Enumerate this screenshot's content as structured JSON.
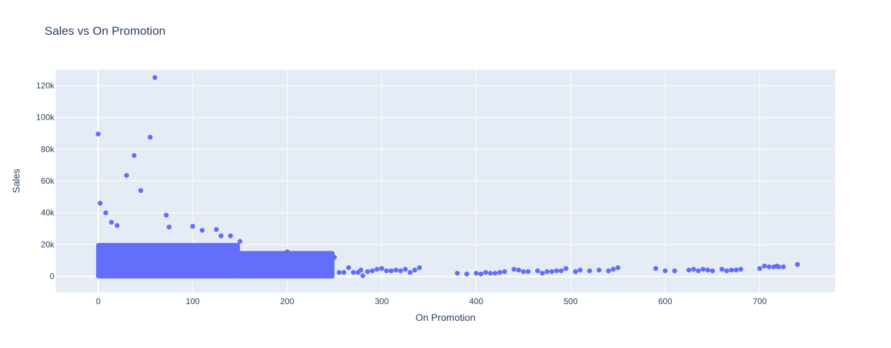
{
  "chart_data": {
    "type": "scatter",
    "title": "Sales vs On Promotion",
    "xlabel": "On Promotion",
    "ylabel": "Sales",
    "xlim": [
      -45,
      780
    ],
    "ylim": [
      -10000,
      130000
    ],
    "x_ticks": [
      0,
      100,
      200,
      300,
      400,
      500,
      600,
      700
    ],
    "x_tick_labels": [
      "0",
      "100",
      "200",
      "300",
      "400",
      "500",
      "600",
      "700"
    ],
    "y_ticks": [
      0,
      20000,
      40000,
      60000,
      80000,
      100000,
      120000
    ],
    "y_tick_labels": [
      "0",
      "20k",
      "40k",
      "60k",
      "80k",
      "100k",
      "120k"
    ],
    "grid": true,
    "legend": "none",
    "colors": {
      "marker": "#636efa",
      "plot_bg": "#e5ecf6",
      "grid": "#ffffff",
      "text": "#2a3f5f"
    },
    "dense_regions": [
      {
        "x_range": [
          0,
          150
        ],
        "y_max": 21000
      },
      {
        "x_range": [
          150,
          250
        ],
        "y_max": 16000
      }
    ],
    "series": [
      {
        "x": [
          0,
          2,
          8,
          14,
          20,
          30,
          38,
          45,
          55,
          60,
          72,
          75,
          100,
          110,
          125,
          130,
          140,
          150,
          200,
          240,
          250,
          255,
          260,
          265,
          270,
          275,
          278,
          280,
          285,
          290,
          295,
          300,
          305,
          310,
          315,
          320,
          325,
          330,
          335,
          340,
          380,
          390,
          400,
          405,
          410,
          415,
          420,
          425,
          430,
          440,
          445,
          450,
          455,
          465,
          470,
          475,
          480,
          485,
          490,
          495,
          505,
          510,
          520,
          530,
          540,
          545,
          550,
          590,
          600,
          610,
          625,
          630,
          635,
          640,
          645,
          650,
          660,
          665,
          670,
          675,
          680,
          700,
          705,
          710,
          715,
          718,
          720,
          725,
          740
        ],
        "y": [
          89500,
          46000,
          40000,
          34000,
          32000,
          63500,
          76000,
          54000,
          87500,
          125000,
          38500,
          31000,
          31500,
          29000,
          29500,
          25500,
          25500,
          22000,
          15500,
          13500,
          12000,
          2500,
          2500,
          5500,
          2500,
          2500,
          4000,
          500,
          3000,
          3500,
          4500,
          5000,
          3500,
          3500,
          4000,
          3500,
          4500,
          2500,
          4000,
          5500,
          2000,
          1500,
          2000,
          1500,
          2500,
          2000,
          2000,
          2500,
          3000,
          4500,
          4000,
          3000,
          3000,
          3500,
          2000,
          3000,
          3000,
          3500,
          3500,
          5000,
          3000,
          4000,
          3500,
          4000,
          3500,
          4500,
          5500,
          5000,
          3500,
          3500,
          4000,
          4500,
          3500,
          4500,
          4000,
          3500,
          4500,
          3500,
          4000,
          4000,
          4500,
          5000,
          6500,
          6000,
          6000,
          6500,
          6000,
          6000,
          7500
        ]
      }
    ]
  }
}
